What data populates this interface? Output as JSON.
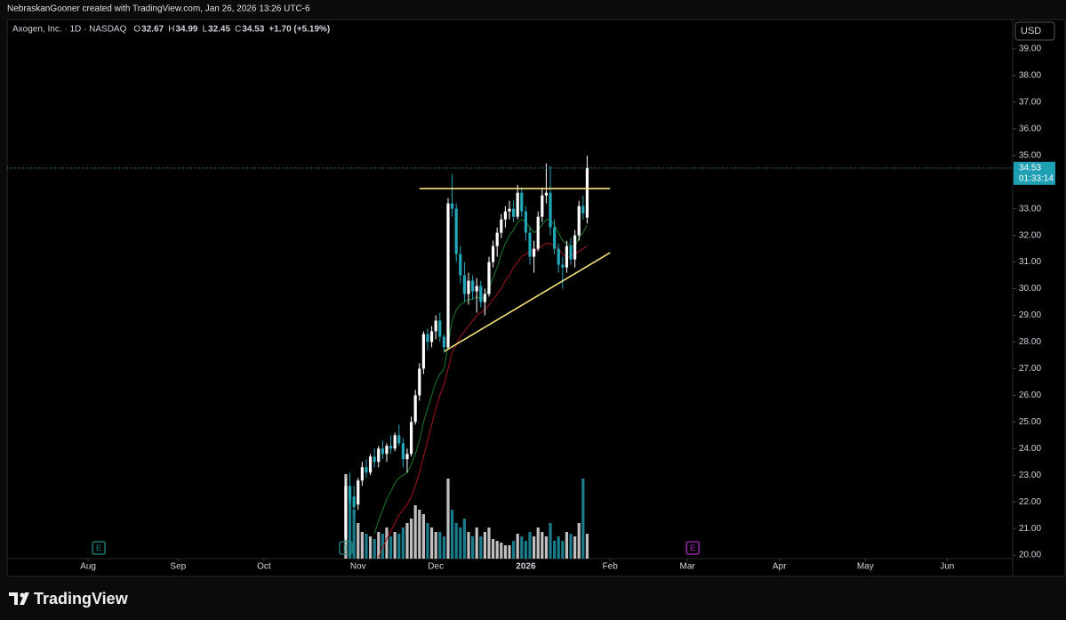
{
  "chart_data": {
    "type": "candlestick",
    "header": "NebraskanGooner created with TradingView.com, Jan 26, 2026 13:26 UTC-6",
    "title": "Axogen, Inc. · 1D · NASDAQ",
    "ohlc_letters": [
      "O",
      "H",
      "L",
      "C"
    ],
    "change_label": "+1.70 (+5.19%)",
    "currency": "USD",
    "countdown": "01:33:14",
    "brand": "TradingView",
    "up_color": "#ffffff",
    "down_color": "#22a6b8",
    "price_label_color": "#1e9fb3",
    "open": [
      20.6,
      22.6,
      22.2,
      21.9,
      22.8,
      23.3,
      23.1,
      23.7,
      23.5,
      24.0,
      23.8,
      24.1,
      24.0,
      24.5,
      24.2,
      23.6,
      23.8,
      25.0,
      26.0,
      27.0,
      28.3,
      28.0,
      28.4,
      28.8,
      28.2,
      27.8,
      33.2,
      33.0,
      31.3,
      30.5,
      29.8,
      30.3,
      29.9,
      30.1,
      29.5,
      29.8,
      31.0,
      31.6,
      32.1,
      32.6,
      32.9,
      33.0,
      32.7,
      33.6,
      32.9,
      32.1,
      31.2,
      31.5,
      32.7,
      33.5,
      33.6,
      32.3,
      31.5,
      30.9,
      30.8,
      31.6,
      31.1,
      32.0,
      33.1,
      32.67
    ],
    "high": [
      22.9,
      23.1,
      22.6,
      22.9,
      23.5,
      23.6,
      23.8,
      24.0,
      24.1,
      24.3,
      24.2,
      24.5,
      24.6,
      24.9,
      24.4,
      24.0,
      25.2,
      26.2,
      27.2,
      28.4,
      28.5,
      28.6,
      29.0,
      29.1,
      28.3,
      33.4,
      34.3,
      33.2,
      31.6,
      31.0,
      30.6,
      30.5,
      30.4,
      30.3,
      30.0,
      31.2,
      31.8,
      32.3,
      32.8,
      33.1,
      33.3,
      33.3,
      33.9,
      33.8,
      33.1,
      32.3,
      31.8,
      32.9,
      33.8,
      34.7,
      34.6,
      32.6,
      31.7,
      31.2,
      31.8,
      31.9,
      32.2,
      33.3,
      33.5,
      34.99
    ],
    "low": [
      20.4,
      21.9,
      21.5,
      21.7,
      22.6,
      22.9,
      23.0,
      23.3,
      23.3,
      23.6,
      23.5,
      23.8,
      23.9,
      24.1,
      23.3,
      23.1,
      23.7,
      24.9,
      25.8,
      26.8,
      27.7,
      27.8,
      28.1,
      28.0,
      27.6,
      27.7,
      32.7,
      31.0,
      30.2,
      29.5,
      29.4,
      29.6,
      29.1,
      29.3,
      29.0,
      29.7,
      30.8,
      31.2,
      31.9,
      32.3,
      32.6,
      32.5,
      32.6,
      32.7,
      31.8,
      30.9,
      30.6,
      31.4,
      32.5,
      33.2,
      32.0,
      31.3,
      30.6,
      30.0,
      30.6,
      30.9,
      30.8,
      31.8,
      32.6,
      32.45
    ],
    "close": [
      22.6,
      22.1,
      21.8,
      22.8,
      23.3,
      23.1,
      23.7,
      23.5,
      24.0,
      23.8,
      24.1,
      24.0,
      24.5,
      24.2,
      23.6,
      23.8,
      25.0,
      26.0,
      27.0,
      28.3,
      28.0,
      28.4,
      28.8,
      28.2,
      27.8,
      33.2,
      33.0,
      31.3,
      30.5,
      29.8,
      30.3,
      29.9,
      30.1,
      29.5,
      29.8,
      31.0,
      31.6,
      32.1,
      32.6,
      32.9,
      33.0,
      32.7,
      33.6,
      32.9,
      32.1,
      31.2,
      31.5,
      32.7,
      33.5,
      33.6,
      32.3,
      31.5,
      30.9,
      30.8,
      31.6,
      31.1,
      32.0,
      33.1,
      32.83,
      34.53
    ],
    "volume": [
      95,
      70,
      55,
      40,
      30,
      28,
      25,
      22,
      30,
      28,
      35,
      25,
      30,
      28,
      35,
      40,
      45,
      60,
      55,
      50,
      40,
      35,
      30,
      30,
      25,
      90,
      55,
      40,
      35,
      45,
      30,
      25,
      35,
      25,
      30,
      35,
      22,
      20,
      18,
      15,
      15,
      20,
      28,
      25,
      20,
      30,
      25,
      35,
      30,
      25,
      40,
      20,
      25,
      20,
      30,
      28,
      25,
      40,
      90,
      28
    ],
    "series": [
      {
        "color": "#1b7a2a",
        "values": [
          null,
          null,
          null,
          null,
          null,
          null,
          null,
          20.8,
          21.3,
          21.7,
          22.1,
          22.4,
          22.7,
          22.9,
          23.0,
          23.1,
          23.4,
          23.8,
          24.3,
          25.0,
          25.5,
          26.0,
          26.5,
          26.8,
          27.0,
          27.9,
          28.8,
          29.2,
          29.4,
          29.5,
          29.6,
          29.6,
          29.7,
          29.6,
          29.7,
          30.0,
          30.4,
          30.8,
          31.3,
          31.7,
          32.0,
          32.2,
          32.5,
          32.6,
          32.5,
          32.3,
          32.1,
          32.2,
          32.4,
          32.6,
          32.6,
          32.4,
          32.1,
          31.8,
          31.7,
          31.6,
          31.6,
          31.9,
          32.1,
          32.4
        ]
      },
      {
        "color": "#a3161b",
        "values": [
          null,
          null,
          null,
          null,
          null,
          null,
          null,
          null,
          19.9,
          20.3,
          20.6,
          20.9,
          21.2,
          21.5,
          21.7,
          21.9,
          22.2,
          22.6,
          23.1,
          23.7,
          24.3,
          24.9,
          25.5,
          26.0,
          26.4,
          27.0,
          27.6,
          27.9,
          28.2,
          28.4,
          28.6,
          28.8,
          29.0,
          29.1,
          29.2,
          29.4,
          29.6,
          29.8,
          30.0,
          30.3,
          30.5,
          30.8,
          31.0,
          31.2,
          31.3,
          31.4,
          31.4,
          31.5,
          31.6,
          31.7,
          31.7,
          31.6,
          31.5,
          31.3,
          31.2,
          31.2,
          31.3,
          31.4,
          31.5,
          31.6
        ]
      }
    ],
    "trendlines": [
      {
        "color": "#f5e17a",
        "x": [
          18,
          64.6
        ],
        "y": [
          33.76,
          33.76
        ]
      },
      {
        "color": "#f5e17a",
        "x": [
          24.1,
          64.6
        ],
        "y": [
          27.65,
          31.35
        ]
      }
    ],
    "events": [
      {
        "label": "E",
        "x": -60.4,
        "color": "#1e8c86"
      },
      {
        "label": "E",
        "x": 0,
        "color": "#1e8c86"
      },
      {
        "label": "E",
        "x": 84.8,
        "color": "#b026c8"
      }
    ],
    "ylim": [
      19.87,
      40.1
    ],
    "yticks": [
      {
        "value": 20,
        "label": "20.00"
      },
      {
        "value": 21,
        "label": "21.00"
      },
      {
        "value": 22,
        "label": "22.00"
      },
      {
        "value": 23,
        "label": "23.00"
      },
      {
        "value": 24,
        "label": "24.00"
      },
      {
        "value": 25,
        "label": "25.00"
      },
      {
        "value": 26,
        "label": "26.00"
      },
      {
        "value": 27,
        "label": "27.00"
      },
      {
        "value": 28,
        "label": "28.00"
      },
      {
        "value": 29,
        "label": "29.00"
      },
      {
        "value": 30,
        "label": "30.00"
      },
      {
        "value": 31,
        "label": "31.00"
      },
      {
        "value": 32,
        "label": "32.00"
      },
      {
        "value": 33,
        "label": "33.00"
      },
      {
        "value": 34,
        "label": "34.00"
      },
      {
        "value": 35,
        "label": "35.00"
      },
      {
        "value": 36,
        "label": "36.00"
      },
      {
        "value": 37,
        "label": "37.00"
      },
      {
        "value": 38,
        "label": "38.00"
      },
      {
        "value": 39,
        "label": "39.00"
      }
    ],
    "xlim": [
      -82.8,
      162.8
    ],
    "xticks": [
      {
        "value": -63,
        "label": "Aug"
      },
      {
        "value": -41,
        "label": "Sep"
      },
      {
        "value": -20,
        "label": "Oct"
      },
      {
        "value": 3,
        "label": "Nov"
      },
      {
        "value": 22,
        "label": "Dec"
      },
      {
        "value": 44,
        "label": "2026"
      },
      {
        "value": 64.6,
        "label": "Feb"
      },
      {
        "value": 83.5,
        "label": "Mar"
      },
      {
        "value": 106,
        "label": "Apr"
      },
      {
        "value": 127,
        "label": "May"
      },
      {
        "value": 147,
        "label": "Jun"
      }
    ],
    "last_price_line": true
  }
}
